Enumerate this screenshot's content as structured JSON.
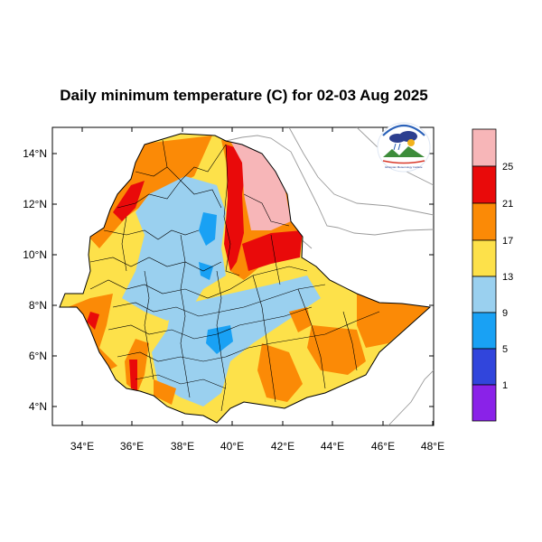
{
  "title": "Daily minimum temperature (C) for 02-03 Aug 2025",
  "axes": {
    "x_ticks": [
      "34°E",
      "36°E",
      "38°E",
      "40°E",
      "42°E",
      "44°E",
      "46°E",
      "48°E"
    ],
    "y_ticks": [
      "14°N",
      "12°N",
      "10°N",
      "8°N",
      "6°N",
      "4°N"
    ],
    "lon_range": [
      33,
      48.2
    ],
    "lat_range": [
      3.2,
      15
    ]
  },
  "colorbar": {
    "labels": [
      "25",
      "21",
      "17",
      "13",
      "9",
      "5",
      "1"
    ],
    "colors": [
      "#f7b6b8",
      "#e90a0a",
      "#fb8a06",
      "#fde14a",
      "#9ad0ef",
      "#19a1f4",
      "#3145dc",
      "#8a22e8"
    ]
  },
  "logo": {
    "icon": "ethiopian-meteorology-institute-logo",
    "caption": "Ethiopian Meteorology Institute"
  }
}
